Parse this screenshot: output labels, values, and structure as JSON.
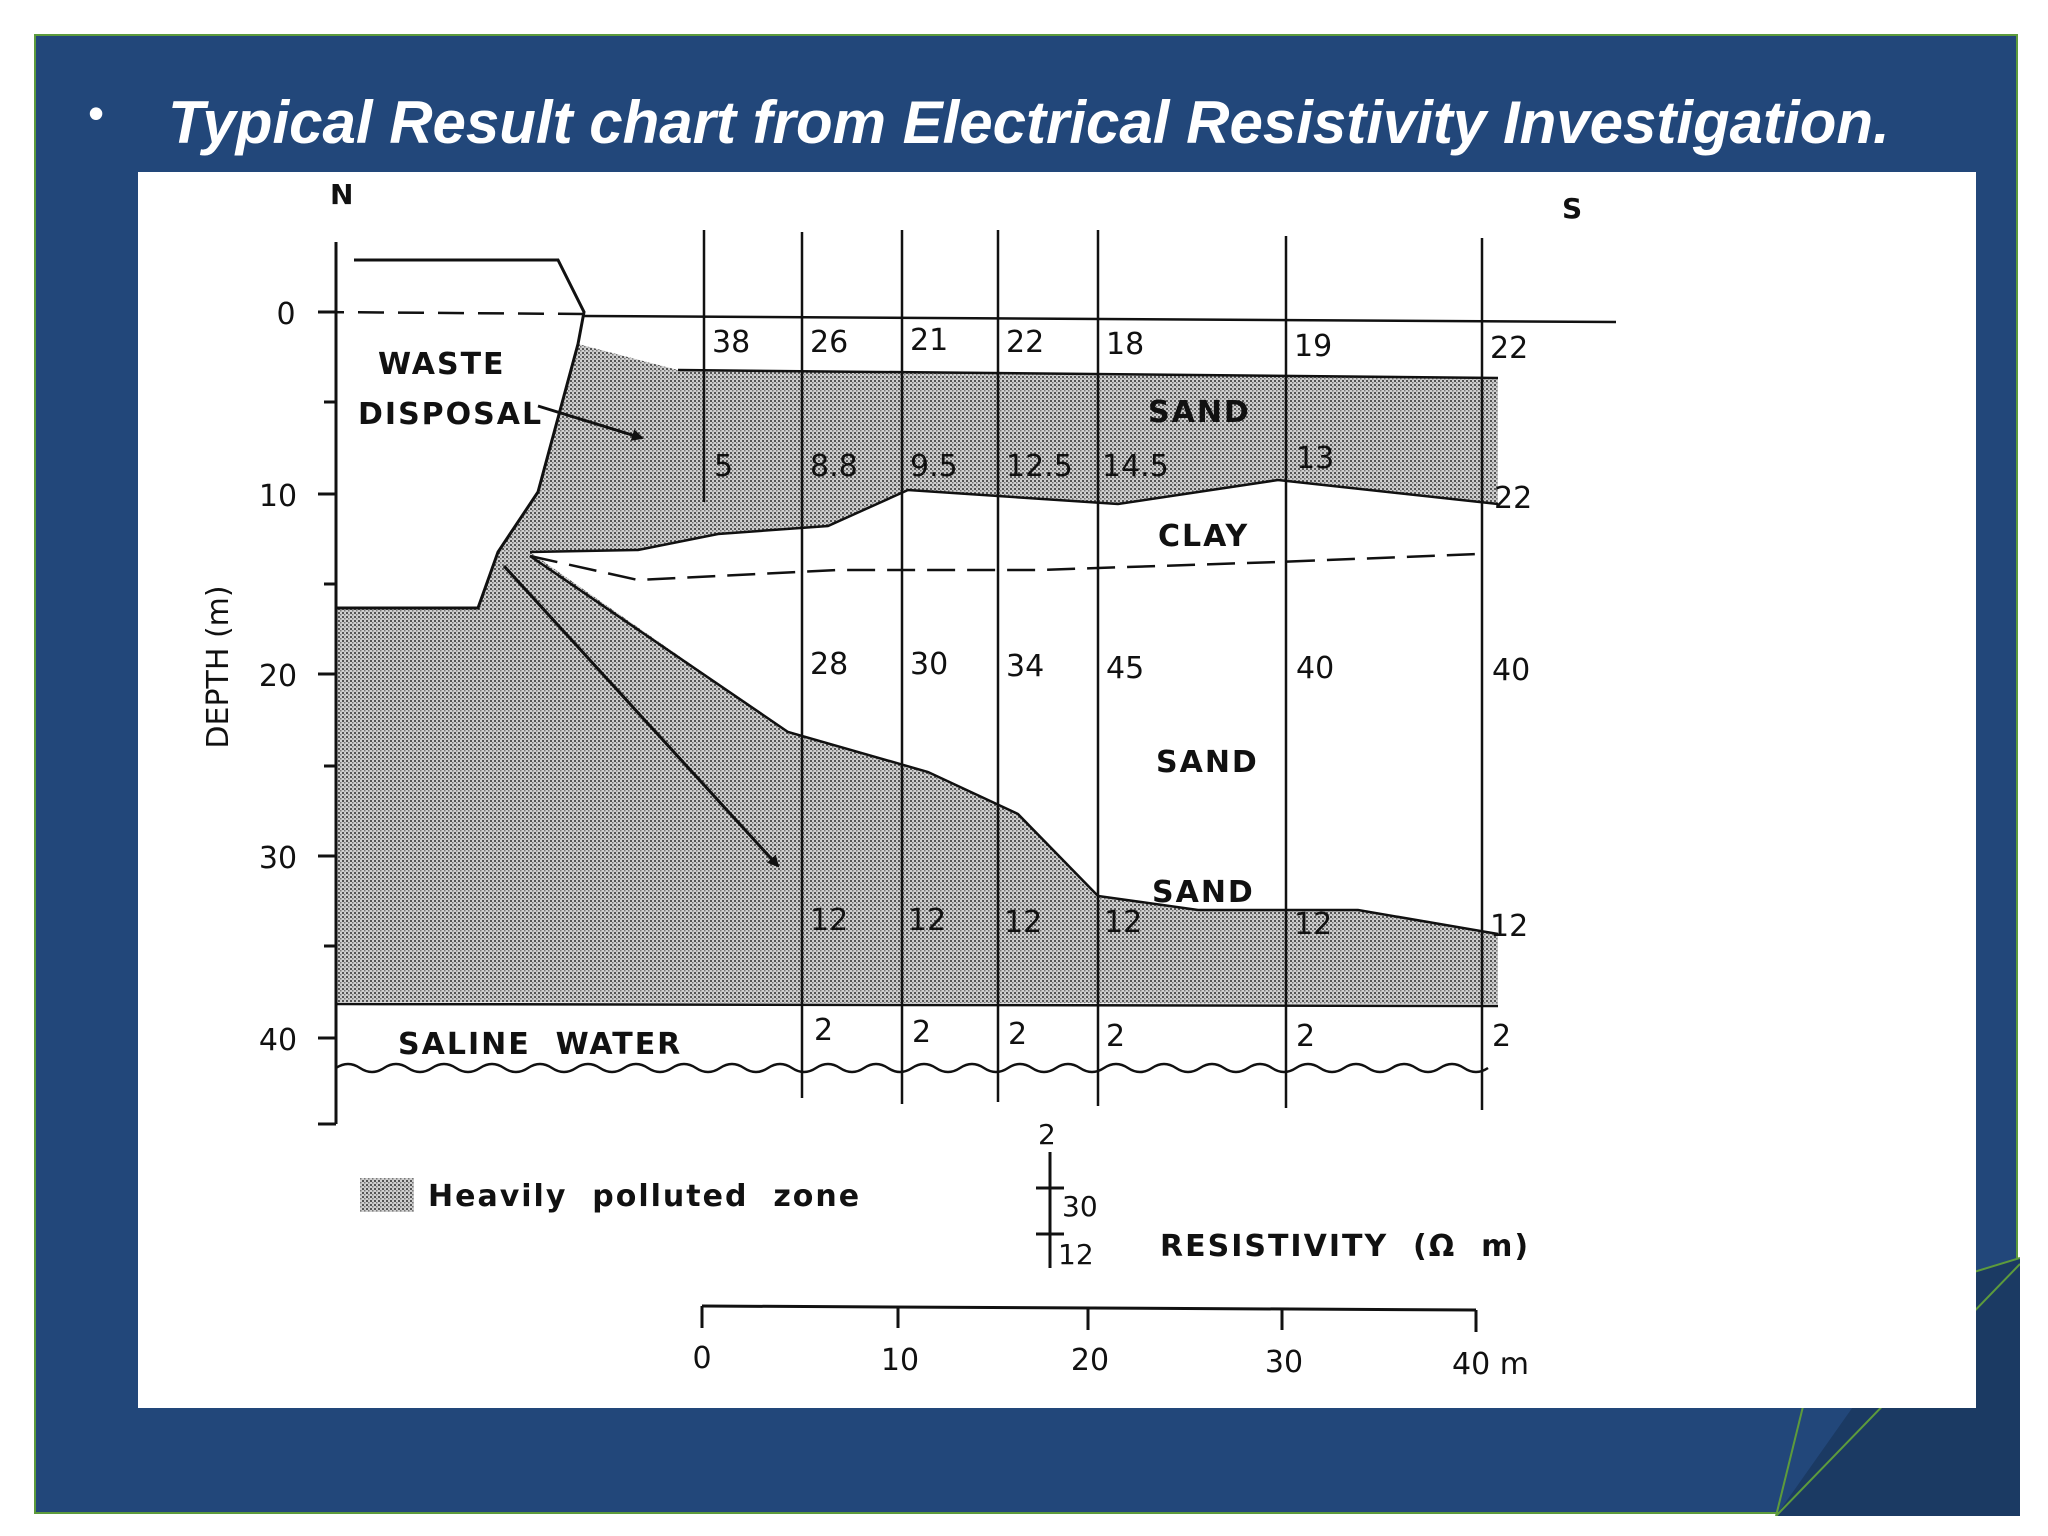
{
  "slide": {
    "bullet": "•",
    "title": "Typical Result chart from Electrical Resistivity Investigation."
  },
  "colors": {
    "frame_blue": "#22477a",
    "frame_border": "#5d9b3c",
    "fold_dark": "#1b3a63"
  },
  "figure": {
    "north_label": "N",
    "south_label": "S",
    "depth_axis_label": "DEPTH (m)",
    "depth_ticks": [
      "0",
      "10",
      "20",
      "30",
      "40"
    ],
    "layer_labels": {
      "waste_line1": "WASTE",
      "waste_line2": "DISPOSAL",
      "sand_upper": "SAND",
      "clay": "CLAY",
      "sand_middle": "SAND",
      "sand_lower": "SAND",
      "saline_water": "SALINE  WATER"
    },
    "resistivity_values": {
      "row1": [
        "38",
        "26",
        "21",
        "22",
        "18",
        "19",
        "22"
      ],
      "row2": [
        "5",
        "8.8",
        "9.5",
        "12.5",
        "14.5",
        "13",
        "22"
      ],
      "row3": [
        "28",
        "30",
        "34",
        "45",
        "40",
        "40"
      ],
      "row4": [
        "12",
        "12",
        "12",
        "12",
        "12",
        "12"
      ],
      "row5": [
        "2",
        "2",
        "2",
        "2",
        "2",
        "2"
      ]
    },
    "legend": {
      "polluted_zone": "Heavily  polluted  zone",
      "key_top": "2",
      "key_middle": "30",
      "key_bottom": "12",
      "resistivity_label": "RESISTIVITY  (Ω  m)"
    },
    "scale_bar": {
      "ticks": [
        "0",
        "10",
        "20",
        "30"
      ],
      "end_label": "40 m"
    }
  }
}
